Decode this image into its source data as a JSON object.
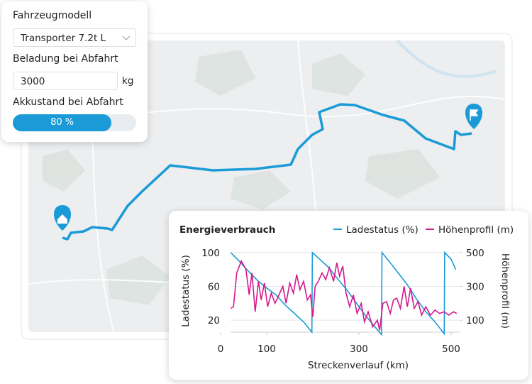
{
  "form": {
    "vehicle_label": "Fahrzeugmodell",
    "vehicle_value": "Transporter 7.2t L",
    "load_label": "Beladung bei Abfahrt",
    "load_value": "3000",
    "load_unit": "kg",
    "battery_label": "Akkustand bei Abfahrt",
    "battery_value": 80,
    "battery_value_label": "80 %"
  },
  "chart_data": {
    "type": "line",
    "title": "Energieverbrauch",
    "xlabel": "Streckenverlauf (km)",
    "ylabel": "Ladestatus (%)",
    "y2label": "Höhenprofil (m)",
    "xlim": [
      0,
      520
    ],
    "xticks": [
      0,
      100,
      300,
      500
    ],
    "ylim": [
      0,
      104
    ],
    "yticks": [
      20,
      60,
      100
    ],
    "y2lim": [
      0,
      520
    ],
    "y2ticks": [
      100,
      300,
      500
    ],
    "grid": true,
    "legend": "top-right",
    "series": [
      {
        "name": "Ladestatus (%)",
        "color": "#1a9bd7",
        "x": [
          22,
          40,
          60,
          80,
          100,
          120,
          140,
          160,
          180,
          198,
          199,
          215,
          235,
          255,
          275,
          295,
          315,
          335,
          349,
          350,
          365,
          385,
          405,
          425,
          445,
          465,
          485,
          486,
          500,
          510
        ],
        "values": [
          100,
          90,
          78,
          67,
          58,
          50,
          38,
          28,
          18,
          6,
          100,
          92,
          82,
          68,
          55,
          40,
          25,
          12,
          3,
          100,
          90,
          76,
          62,
          45,
          30,
          18,
          4,
          100,
          92,
          80
        ]
      },
      {
        "name": "Höhenprofil (m)",
        "color": "#d4198c",
        "axis": "y2",
        "x": [
          22,
          28,
          35,
          45,
          55,
          62,
          68,
          75,
          82,
          88,
          95,
          102,
          110,
          118,
          125,
          135,
          142,
          150,
          158,
          165,
          172,
          180,
          188,
          195,
          200,
          205,
          212,
          220,
          228,
          236,
          245,
          252,
          258,
          265,
          272,
          280,
          288,
          296,
          305,
          312,
          320,
          330,
          340,
          345,
          352,
          360,
          368,
          375,
          382,
          390,
          398,
          405,
          412,
          420,
          428,
          436,
          445,
          455,
          465,
          475,
          485,
          495,
          505,
          512
        ],
        "values": [
          170,
          180,
          380,
          450,
          400,
          250,
          380,
          150,
          330,
          220,
          320,
          180,
          260,
          200,
          240,
          300,
          200,
          320,
          260,
          370,
          280,
          330,
          220,
          250,
          120,
          300,
          330,
          380,
          340,
          410,
          330,
          440,
          360,
          420,
          260,
          180,
          250,
          140,
          200,
          90,
          150,
          60,
          100,
          40,
          200,
          210,
          140,
          220,
          230,
          170,
          300,
          180,
          290,
          170,
          210,
          130,
          180,
          130,
          160,
          140,
          150,
          130,
          150,
          140
        ]
      }
    ]
  }
}
